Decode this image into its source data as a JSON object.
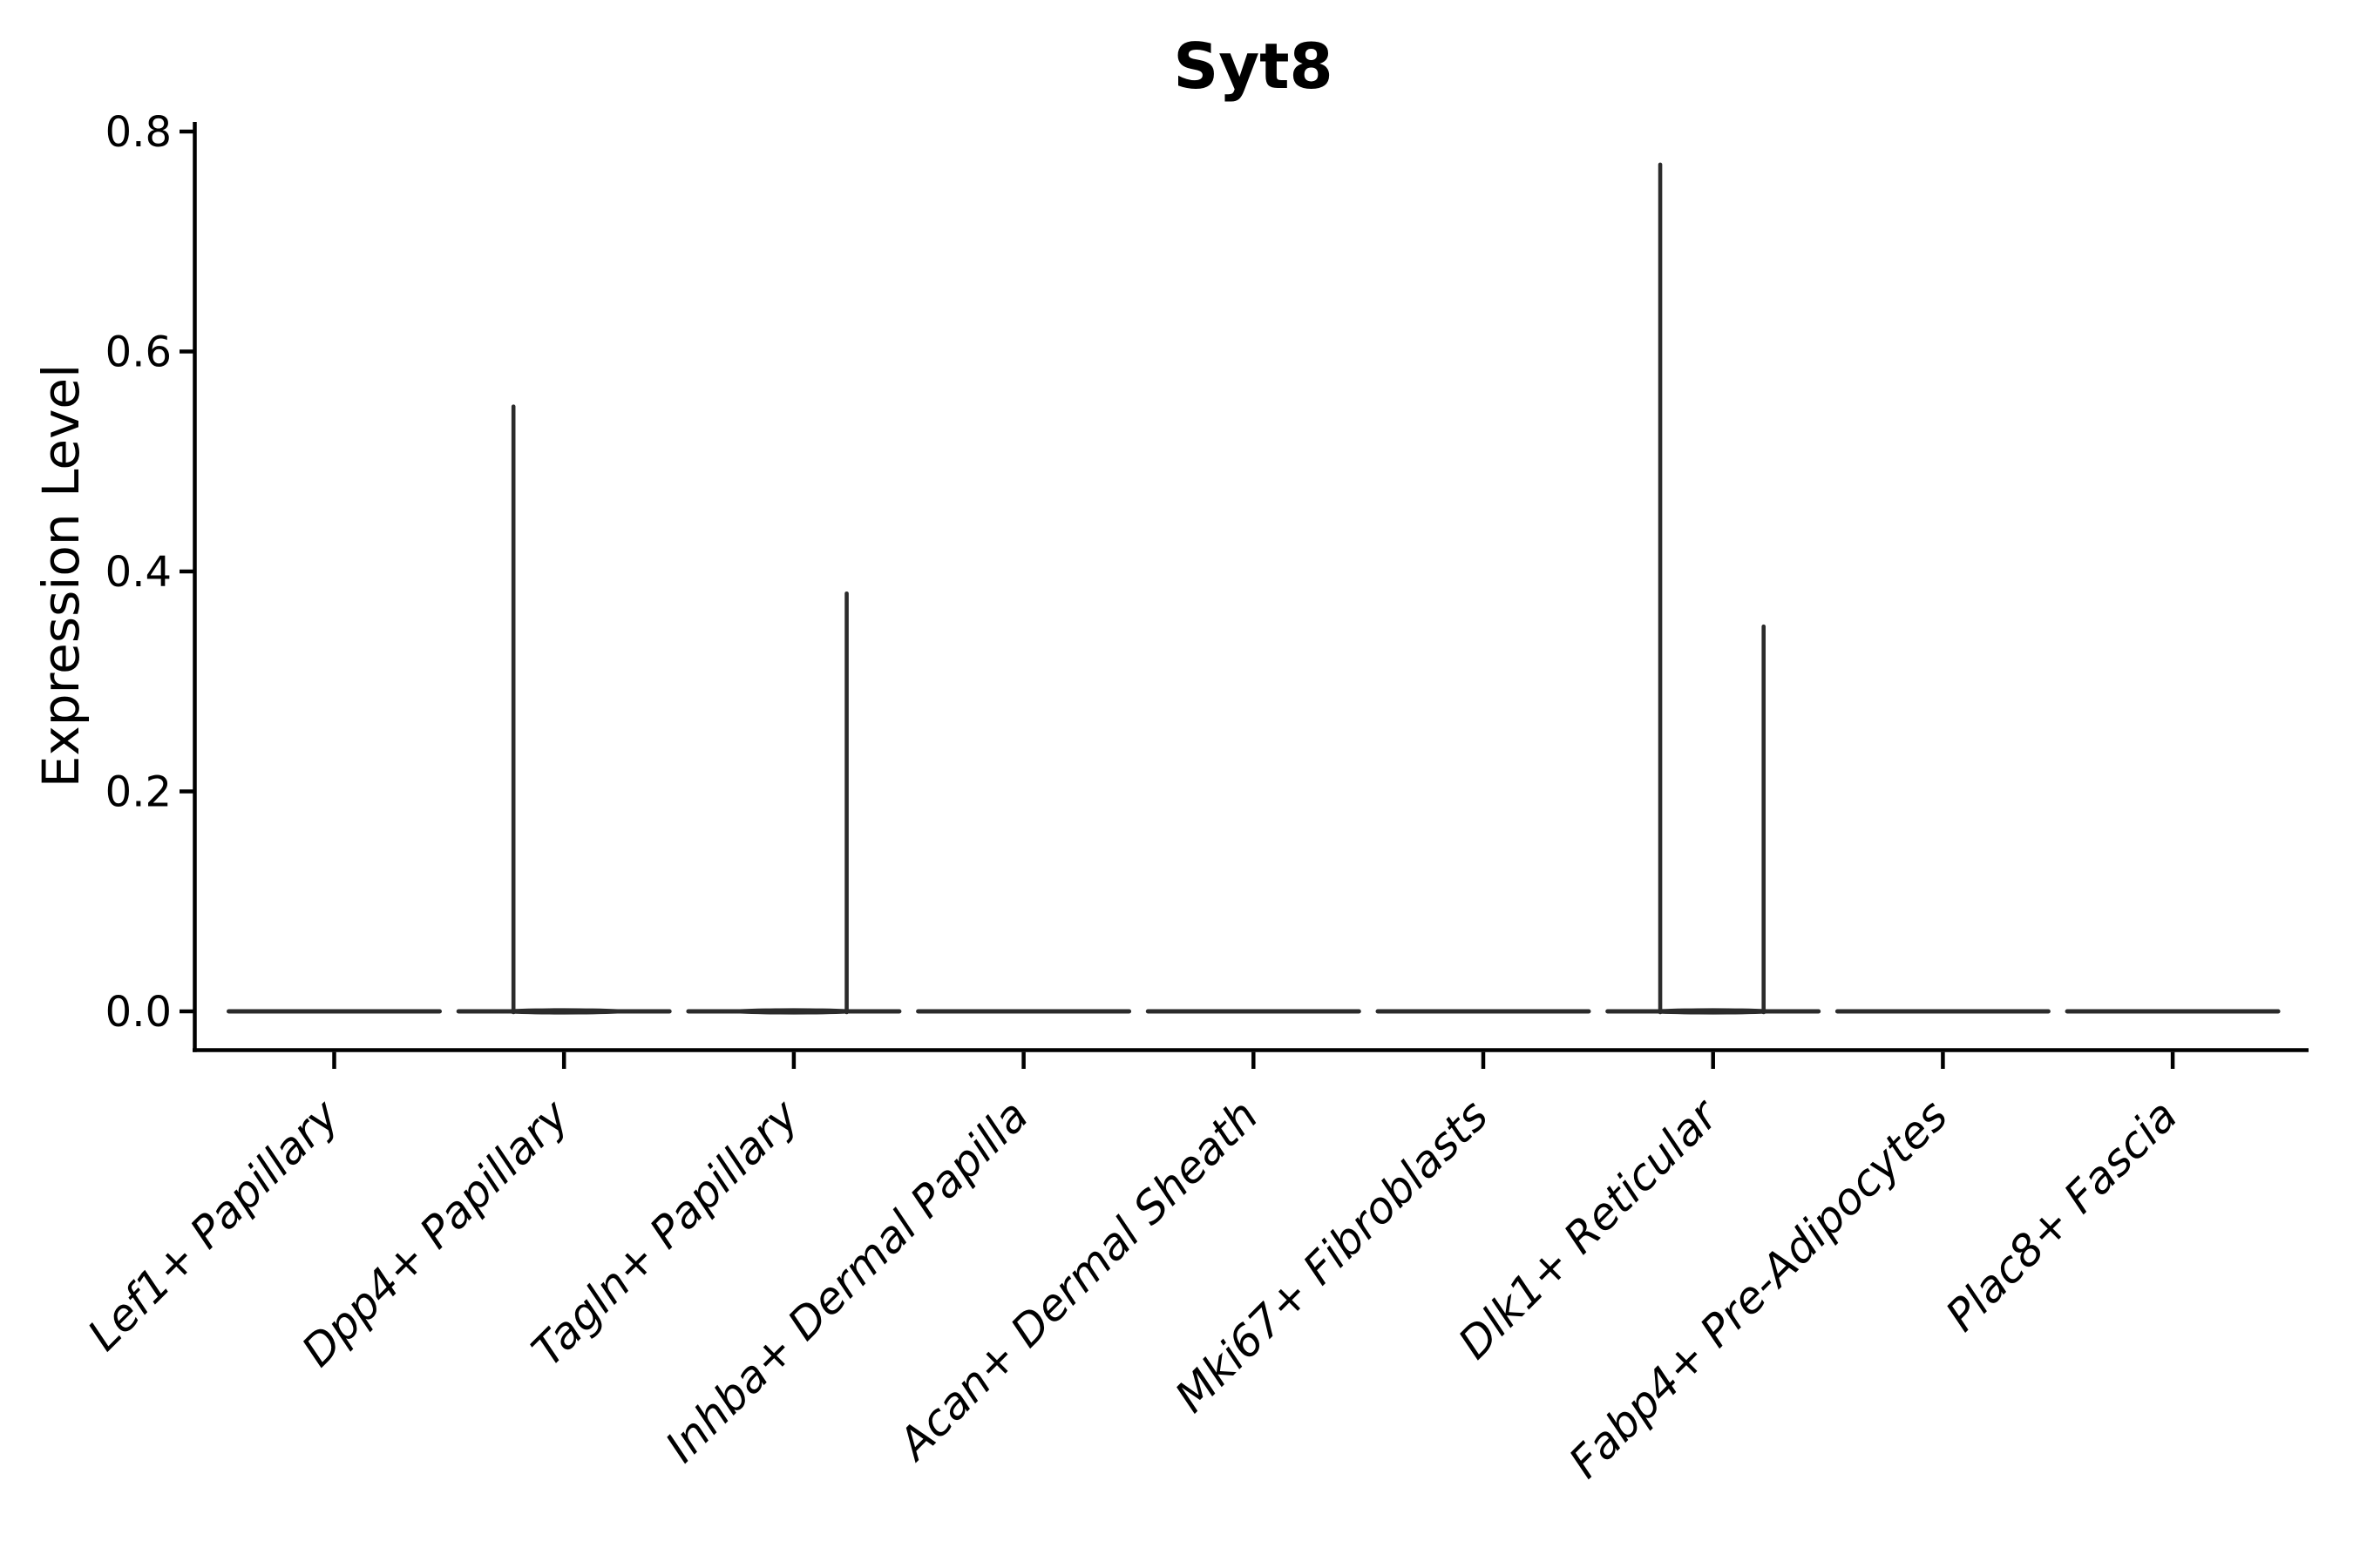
{
  "title": "Syt8",
  "axes": {
    "ylabel": "Expression Level",
    "y_tick_labels": [
      "0.0",
      "0.2",
      "0.4",
      "0.6",
      "0.8"
    ],
    "x_categories": [
      "Lef1+ Papillary",
      "Dpp4+ Papillary",
      "Tagln+ Papillary",
      "Inhba+ Dermal Papilla",
      "Acan+ Dermal Sheath",
      "Mki67+ Fibroblasts",
      "Dlk1+ Reticular",
      "Fabp4+ Pre-Adipocytes",
      "Plac8+ Fascia"
    ],
    "x_tick_label_rotation_deg": 45,
    "x_tick_label_style": "italic"
  },
  "chart_data": {
    "type": "violin",
    "title": "Syt8",
    "xlabel": "",
    "ylabel": "Expression Level",
    "ylim": [
      0,
      0.8
    ],
    "y_ticks": [
      0.0,
      0.2,
      0.4,
      0.6,
      0.8
    ],
    "grid": false,
    "legend": "none",
    "categories": [
      "Lef1+ Papillary",
      "Dpp4+ Papillary",
      "Tagln+ Papillary",
      "Inhba+ Dermal Papilla",
      "Acan+ Dermal Sheath",
      "Mki67+ Fibroblasts",
      "Dlk1+ Reticular",
      "Fabp4+ Pre-Adipocytes",
      "Plac8+ Fascia"
    ],
    "series": [
      {
        "category": "Lef1+ Papillary",
        "baseline_value": 0.0,
        "max_expression": 0.0,
        "spikes": []
      },
      {
        "category": "Dpp4+ Papillary",
        "baseline_value": 0.0,
        "max_expression": 0.55,
        "spikes": [
          {
            "offset": -0.22,
            "value": 0.55
          }
        ]
      },
      {
        "category": "Tagln+ Papillary",
        "baseline_value": 0.0,
        "max_expression": 0.38,
        "spikes": [
          {
            "offset": 0.23,
            "value": 0.38
          }
        ]
      },
      {
        "category": "Inhba+ Dermal Papilla",
        "baseline_value": 0.0,
        "max_expression": 0.0,
        "spikes": []
      },
      {
        "category": "Acan+ Dermal Sheath",
        "baseline_value": 0.0,
        "max_expression": 0.0,
        "spikes": []
      },
      {
        "category": "Mki67+ Fibroblasts",
        "baseline_value": 0.0,
        "max_expression": 0.0,
        "spikes": []
      },
      {
        "category": "Dlk1+ Reticular",
        "baseline_value": 0.0,
        "max_expression": 0.77,
        "spikes": [
          {
            "offset": -0.23,
            "value": 0.77
          },
          {
            "offset": 0.22,
            "value": 0.35
          }
        ]
      },
      {
        "category": "Fabp4+ Pre-Adipocytes",
        "baseline_value": 0.0,
        "max_expression": 0.0,
        "spikes": []
      },
      {
        "category": "Plac8+ Fascia",
        "baseline_value": 0.0,
        "max_expression": 0.0,
        "spikes": []
      }
    ],
    "violin_relative_width": 0.92,
    "colors": {
      "violin_stroke": "#2b2b2b",
      "axis": "#000000",
      "text": "#000000",
      "background": "#ffffff"
    }
  }
}
